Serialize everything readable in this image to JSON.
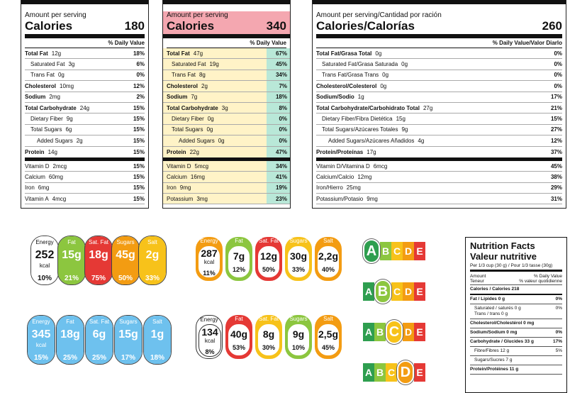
{
  "label1": {
    "amount_per_serving": "Amount per serving",
    "calories_label": "Calories",
    "calories_value": "180",
    "dv_header": "% Daily Value",
    "rows": [
      {
        "name": "Total Fat",
        "amount": "12g",
        "dv": "18%",
        "bold": true,
        "indent": 0
      },
      {
        "name": "Saturated Fat",
        "amount": "3g",
        "dv": "6%",
        "bold": false,
        "indent": 1
      },
      {
        "name": "Trans Fat",
        "amount": "0g",
        "dv": "0%",
        "bold": false,
        "indent": 1
      },
      {
        "name": "Cholesterol",
        "amount": "10mg",
        "dv": "12%",
        "bold": true,
        "indent": 0
      },
      {
        "name": "Sodium",
        "amount": "2mg",
        "dv": "2%",
        "bold": true,
        "indent": 0
      },
      {
        "name": "Total Carbohydrate",
        "amount": "24g",
        "dv": "15%",
        "bold": true,
        "indent": 0
      },
      {
        "name": "Dietary Fiber",
        "amount": "9g",
        "dv": "15%",
        "bold": false,
        "indent": 1
      },
      {
        "name": "Total Sugars",
        "amount": "6g",
        "dv": "15%",
        "bold": false,
        "indent": 1
      },
      {
        "name": "Added Sugars",
        "amount": "2g",
        "dv": "15%",
        "bold": false,
        "indent": 2
      },
      {
        "name": "Protein",
        "amount": "14g",
        "dv": "15%",
        "bold": true,
        "indent": 0
      }
    ],
    "vitamins": [
      {
        "name": "Vitamin D",
        "amount": "2mcg",
        "dv": "15%"
      },
      {
        "name": "Calcium",
        "amount": "60mg",
        "dv": "15%"
      },
      {
        "name": "Iron",
        "amount": "6mg",
        "dv": "15%"
      },
      {
        "name": "Vitamin A",
        "amount": "4mcg",
        "dv": "15%"
      }
    ]
  },
  "label2": {
    "amount_per_serving": "Amount per serving",
    "calories_label": "Calories",
    "calories_value": "340",
    "dv_header": "% Daily Value",
    "rows": [
      {
        "name": "Total Fat",
        "amount": "47g",
        "dv": "67%",
        "bold": true,
        "indent": 0
      },
      {
        "name": "Saturated Fat",
        "amount": "19g",
        "dv": "45%",
        "bold": false,
        "indent": 1
      },
      {
        "name": "Trans Fat",
        "amount": "8g",
        "dv": "34%",
        "bold": false,
        "indent": 1
      },
      {
        "name": "Cholesterol",
        "amount": "2g",
        "dv": "7%",
        "bold": true,
        "indent": 0
      },
      {
        "name": "Sodium",
        "amount": "7g",
        "dv": "18%",
        "bold": true,
        "indent": 0
      },
      {
        "name": "Total Carbohydrate",
        "amount": "3g",
        "dv": "8%",
        "bold": true,
        "indent": 0
      },
      {
        "name": "Dietary Fiber",
        "amount": "0g",
        "dv": "0%",
        "bold": false,
        "indent": 1
      },
      {
        "name": "Total Sugars",
        "amount": "0g",
        "dv": "0%",
        "bold": false,
        "indent": 1
      },
      {
        "name": "Added Sugars",
        "amount": "0g",
        "dv": "0%",
        "bold": false,
        "indent": 2
      },
      {
        "name": "Protein",
        "amount": "22g",
        "dv": "47%",
        "bold": true,
        "indent": 0
      }
    ],
    "vitamins": [
      {
        "name": "Vitamin D",
        "amount": "5mcg",
        "dv": "34%"
      },
      {
        "name": "Calcium",
        "amount": "16mg",
        "dv": "41%"
      },
      {
        "name": "Iron",
        "amount": "9mg",
        "dv": "19%"
      },
      {
        "name": "Potassium",
        "amount": "3mg",
        "dv": "23%"
      }
    ]
  },
  "label3": {
    "amount_per_serving": "Amount per serving/Cantidad por ración",
    "calories_label": "Calories/Calorías",
    "calories_value": "260",
    "dv_header": "% Daily Value/Valor Diarlo",
    "rows": [
      {
        "name": "Total Fat/Grasa Total",
        "amount": "0g",
        "dv": "0%",
        "bold": true,
        "indent": 0
      },
      {
        "name": "Saturated Fat/Grasa Saturada",
        "amount": "0g",
        "dv": "0%",
        "bold": false,
        "indent": 1
      },
      {
        "name": "Trans Fat/Grasa Trans",
        "amount": "0g",
        "dv": "0%",
        "bold": false,
        "indent": 1
      },
      {
        "name": "Cholesterol/Colesterol",
        "amount": "0g",
        "dv": "0%",
        "bold": true,
        "indent": 0
      },
      {
        "name": "Sodium/Sodio",
        "amount": "1g",
        "dv": "17%",
        "bold": true,
        "indent": 0
      },
      {
        "name": "Total Carbohydrate/Carbohidrato Total",
        "amount": "27g",
        "dv": "21%",
        "bold": true,
        "indent": 0
      },
      {
        "name": "Dietary Fiber/Fibra Dietética",
        "amount": "15g",
        "dv": "15%",
        "bold": false,
        "indent": 1
      },
      {
        "name": "Total Sugars/Azúcares Totales",
        "amount": "9g",
        "dv": "27%",
        "bold": false,
        "indent": 1
      },
      {
        "name": "Added Sugars/Azúcares Añadidos",
        "amount": "4g",
        "dv": "12%",
        "bold": false,
        "indent": 2
      },
      {
        "name": "Protein/Proteínas",
        "amount": "17g",
        "dv": "37%",
        "bold": true,
        "indent": 0
      }
    ],
    "vitamins": [
      {
        "name": "Vitamin D/Vitamina D",
        "amount": "6mcg",
        "dv": "45%"
      },
      {
        "name": "Calcium/Calcio",
        "amount": "12mg",
        "dv": "38%"
      },
      {
        "name": "Iron/Hierro",
        "amount": "25mg",
        "dv": "29%"
      },
      {
        "name": "Potassium/Potasio",
        "amount": "9mg",
        "dv": "31%"
      }
    ]
  },
  "traffic_lights_1": [
    {
      "name": "Energy",
      "value": "252",
      "unit": "kcal",
      "pct": "10%",
      "color": "#ffffff"
    },
    {
      "name": "Fat",
      "value": "15g",
      "unit": "",
      "pct": "21%",
      "color": "#8cc63f"
    },
    {
      "name": "Sat. Fat",
      "value": "18g",
      "unit": "",
      "pct": "75%",
      "color": "#e53935"
    },
    {
      "name": "Sugars",
      "value": "45g",
      "unit": "",
      "pct": "50%",
      "color": "#f39c12"
    },
    {
      "name": "Salt",
      "value": "2g",
      "unit": "",
      "pct": "33%",
      "color": "#f7c21a"
    }
  ],
  "traffic_lights_2": [
    {
      "name": "Energy",
      "value": "345",
      "unit": "kcal",
      "pct": "15%",
      "color": "#6ec1ee"
    },
    {
      "name": "Fat",
      "value": "18g",
      "unit": "",
      "pct": "25%",
      "color": "#6ec1ee"
    },
    {
      "name": "Sat. Fat",
      "value": "6g",
      "unit": "",
      "pct": "25%",
      "color": "#6ec1ee"
    },
    {
      "name": "Sugars",
      "value": "15g",
      "unit": "",
      "pct": "17%",
      "color": "#6ec1ee"
    },
    {
      "name": "Salt",
      "value": "1g",
      "unit": "",
      "pct": "18%",
      "color": "#6ec1ee"
    }
  ],
  "circle_badges_1": [
    {
      "name": "Energy",
      "value": "287",
      "unit": "kcal",
      "pct": "11%",
      "color": "#f39c12"
    },
    {
      "name": "Fat",
      "value": "7g",
      "unit": "",
      "pct": "12%",
      "color": "#8cc63f"
    },
    {
      "name": "Sat. Fat",
      "value": "12g",
      "unit": "",
      "pct": "50%",
      "color": "#e53935"
    },
    {
      "name": "Sugars",
      "value": "30g",
      "unit": "",
      "pct": "33%",
      "color": "#f7c21a"
    },
    {
      "name": "Salt",
      "value": "2,2g",
      "unit": "",
      "pct": "40%",
      "color": "#f39c12"
    }
  ],
  "pill_row_2": [
    {
      "name": "Energy",
      "value": "134",
      "unit": "kcal",
      "pct": "8%",
      "color": "#ffffff"
    },
    {
      "name": "Fat",
      "value": "40g",
      "unit": "",
      "pct": "53%",
      "color": "#e53935"
    },
    {
      "name": "Sat. Fat",
      "value": "8g",
      "unit": "",
      "pct": "30%",
      "color": "#f7c21a"
    },
    {
      "name": "Sugars",
      "value": "9g",
      "unit": "",
      "pct": "10%",
      "color": "#8cc63f"
    },
    {
      "name": "Salt",
      "value": "2,5g",
      "unit": "",
      "pct": "45%",
      "color": "#f39c12"
    }
  ],
  "nutriscore": {
    "letters": [
      "A",
      "B",
      "C",
      "D",
      "E"
    ],
    "colors": [
      "#2e9e4f",
      "#8cc63f",
      "#f7c21a",
      "#f39c12",
      "#e53935"
    ],
    "selected": [
      "A",
      "B",
      "C",
      "D"
    ]
  },
  "bilingual_label": {
    "title_en": "Nutrition Facts",
    "title_fr": "Valeur nutritive",
    "serving": "Per 1/3 cup (30 g) / Pour 1/3 tasse (30g)",
    "amount_left": "Amount",
    "amount_left2": "Teneur",
    "dv_right": "% Daily Value",
    "dv_right2": "% valeur quotidienne",
    "calories": "Calories / Calories 218",
    "rows": [
      {
        "name": "Fat / Lipides 0 g",
        "dv": "0%",
        "bold": true
      },
      {
        "name": "Saturated / saturés 0 g",
        "name2": "Trans / trans 0 g",
        "dv": "0%",
        "bold": false
      },
      {
        "name": "Cholesterol/Cholestérol 0 mg",
        "dv": "",
        "bold": true
      },
      {
        "name": "Sodium/Sodium 0 mg",
        "dv": "0%",
        "bold": true
      },
      {
        "name": "Carbohydrate / Glucides 33 g",
        "dv": "17%",
        "bold": true
      },
      {
        "name": "Fibre/Fibres 12 g",
        "dv": "5%",
        "bold": false
      },
      {
        "name": "Sugars/Sucres 7 g",
        "dv": "",
        "bold": false
      },
      {
        "name": "Protein/Protéines 11 g",
        "dv": "",
        "bold": true
      }
    ]
  }
}
